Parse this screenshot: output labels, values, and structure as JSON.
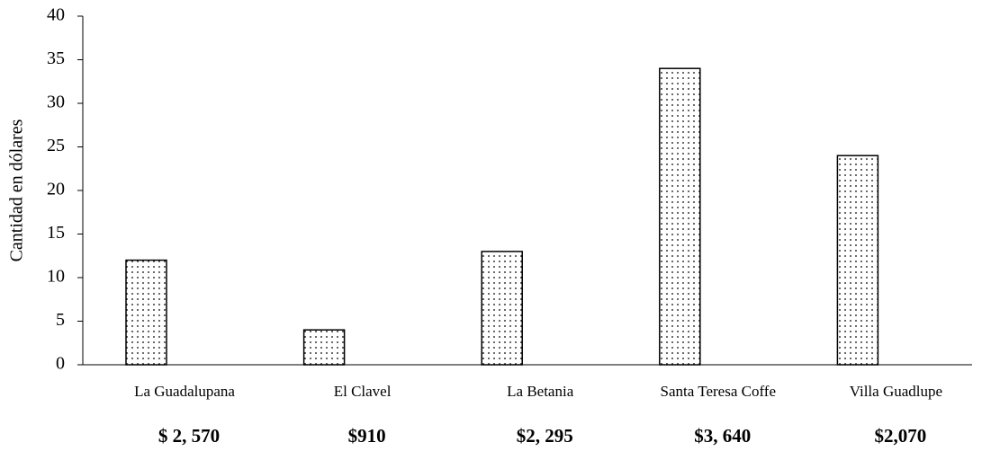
{
  "chart_data": {
    "type": "bar",
    "y_label": "Cantidad en dólares",
    "categories": [
      "La Guadalupana",
      "El Clavel",
      "La Betania",
      "Santa Teresa Coffe",
      "Villa Guadlupe"
    ],
    "values": [
      12,
      4,
      13,
      34,
      24
    ],
    "annotations": [
      "$ 2, 570",
      "$910",
      "$2, 295",
      "$3, 640",
      "$2,070"
    ],
    "color": "#000000",
    "ylim": [
      0,
      40
    ],
    "yticks": [
      0,
      5,
      10,
      15,
      20,
      25,
      30,
      35,
      40
    ],
    "grid": false
  }
}
